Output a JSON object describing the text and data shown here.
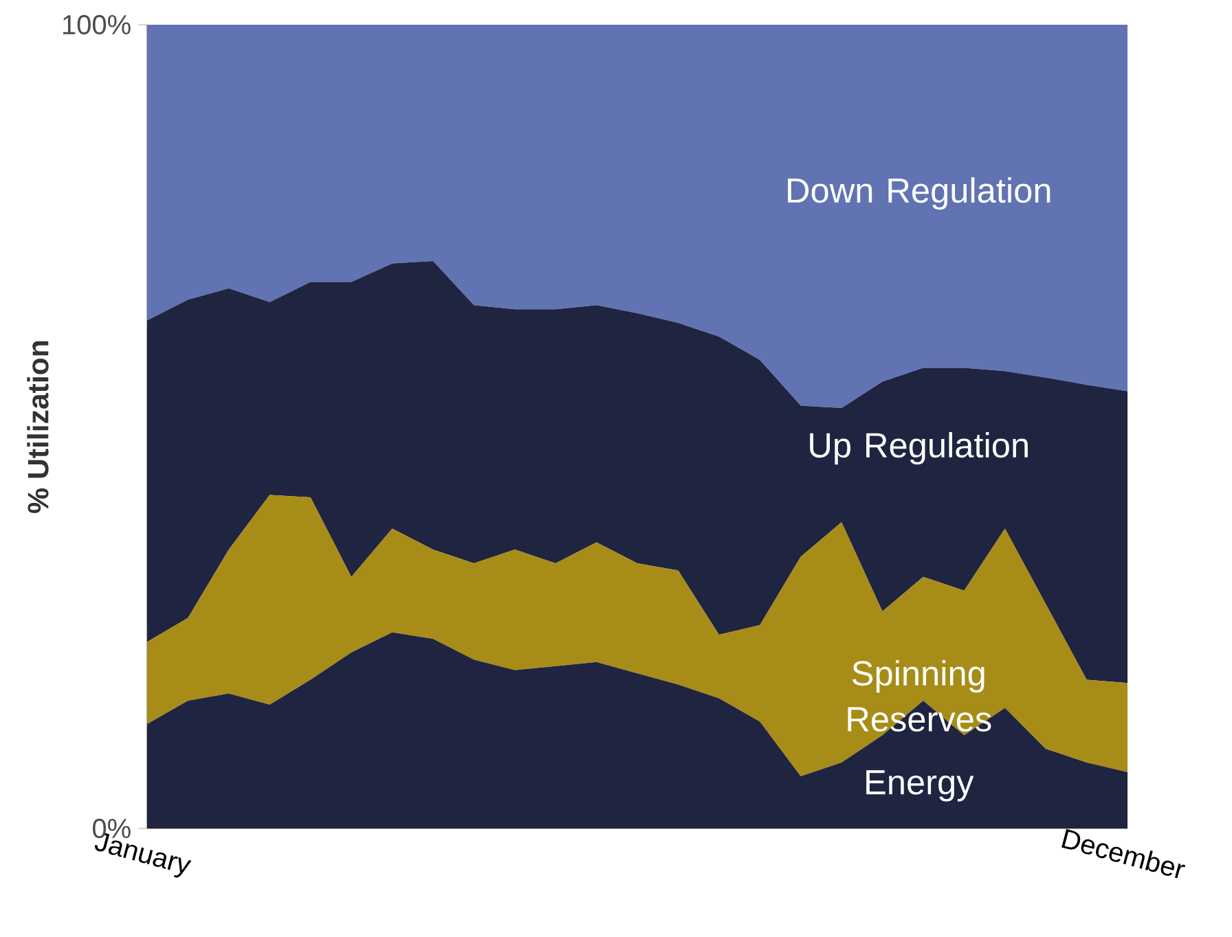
{
  "chart_data": {
    "type": "area",
    "stacked": true,
    "ylabel": "% Utilization",
    "categories": [
      "January",
      null,
      null,
      null,
      null,
      null,
      null,
      null,
      null,
      null,
      null,
      null,
      null,
      null,
      null,
      null,
      null,
      null,
      null,
      null,
      null,
      null,
      null,
      null,
      "December"
    ],
    "ylim": [
      0,
      100
    ],
    "yticks": [
      {
        "value": 0,
        "label": "0%"
      },
      {
        "value": 100,
        "label": "100%"
      }
    ],
    "grid": false,
    "series": [
      {
        "name": "Energy",
        "color": "#1f2440",
        "values": [
          13.0,
          15.9,
          16.8,
          15.4,
          18.5,
          21.9,
          24.4,
          23.6,
          21.0,
          19.7,
          20.2,
          20.7,
          19.3,
          17.9,
          16.2,
          13.3,
          6.5,
          8.2,
          11.6,
          15.9,
          11.6,
          15.0,
          9.9,
          8.2,
          7.0
        ]
      },
      {
        "name": "Spinning Reserves",
        "color": "#a88c18",
        "values": [
          10.2,
          10.3,
          17.9,
          26.1,
          22.7,
          9.4,
          12.9,
          11.1,
          12.0,
          15.0,
          12.8,
          14.9,
          13.7,
          14.2,
          7.9,
          12.0,
          27.3,
          29.9,
          15.4,
          15.4,
          18.0,
          22.3,
          18.0,
          10.3,
          11.1
        ]
      },
      {
        "name": "Up Regulation",
        "color": "#1f2440",
        "values": [
          40.0,
          39.6,
          32.5,
          24.0,
          26.8,
          36.7,
          33.0,
          35.9,
          32.1,
          29.9,
          31.6,
          29.5,
          31.1,
          30.8,
          37.1,
          33.0,
          18.8,
          14.2,
          28.6,
          26.0,
          27.7,
          19.6,
          28.2,
          36.7,
          36.3
        ]
      },
      {
        "name": "Down Regulation",
        "color": "#6173b3",
        "values": [
          36.8,
          34.2,
          32.8,
          34.5,
          32.0,
          32.0,
          29.7,
          29.4,
          34.9,
          35.4,
          35.4,
          34.9,
          35.9,
          37.1,
          38.8,
          41.7,
          47.4,
          47.7,
          44.4,
          42.7,
          42.7,
          43.1,
          43.9,
          44.8,
          45.6
        ]
      }
    ]
  }
}
